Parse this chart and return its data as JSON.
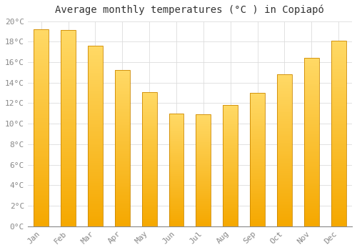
{
  "months": [
    "Jan",
    "Feb",
    "Mar",
    "Apr",
    "May",
    "Jun",
    "Jul",
    "Aug",
    "Sep",
    "Oct",
    "Nov",
    "Dec"
  ],
  "values": [
    19.2,
    19.1,
    17.6,
    15.2,
    13.1,
    11.0,
    10.9,
    11.8,
    13.0,
    14.8,
    16.4,
    18.1
  ],
  "title": "Average monthly temperatures (°C ) in Copiapó",
  "bar_color_top": "#FFD966",
  "bar_color_bottom": "#F5A800",
  "bar_edge_color": "#CC8800",
  "ylim": [
    0,
    20
  ],
  "yticks": [
    0,
    2,
    4,
    6,
    8,
    10,
    12,
    14,
    16,
    18,
    20
  ],
  "ytick_labels": [
    "0°C",
    "2°C",
    "4°C",
    "6°C",
    "8°C",
    "10°C",
    "12°C",
    "14°C",
    "16°C",
    "18°C",
    "20°C"
  ],
  "background_color": "#FFFFFF",
  "grid_color": "#DDDDDD",
  "title_fontsize": 10,
  "tick_fontsize": 8,
  "font_family": "monospace",
  "bar_width": 0.55
}
